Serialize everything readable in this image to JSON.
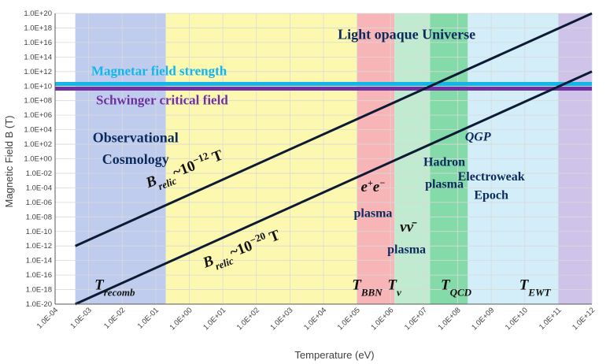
{
  "chart_data": {
    "type": "line",
    "xlabel": "Temperature (eV)",
    "ylabel": "Magnetic Field B (T)",
    "x_scale": "log",
    "y_scale": "log",
    "xlim": [
      0.0001,
      1000000000000
    ],
    "ylim": [
      1e-20,
      1e+20
    ],
    "x_ticks": [
      "1.0E-04",
      "1.0E-03",
      "1.0E-02",
      "1.0E-01",
      "1.0E+00",
      "1.0E+01",
      "1.0E+02",
      "1.0E+03",
      "1.0E+04",
      "1.0E+05",
      "1.0E+06",
      "1.0E+07",
      "1.0E+08",
      "1.0E+09",
      "1.0E+10",
      "1.0E+11",
      "1.0E+12"
    ],
    "y_ticks": [
      "1.0E-20",
      "1.0E-18",
      "1.0E-16",
      "1.0E-14",
      "1.0E-12",
      "1.0E-10",
      "1.0E-08",
      "1.0E-06",
      "1.0E-04",
      "1.0E-02",
      "1.0E+00",
      "1.0E+02",
      "1.0E+04",
      "1.0E+06",
      "1.0E+08",
      "1.0E+10",
      "1.0E+12",
      "1.0E+14",
      "1.0E+16",
      "1.0E+18",
      "1.0E+20"
    ],
    "grid": true,
    "regions": [
      {
        "x": [
          0.0004,
          0.2
        ],
        "color": "#b4c3ea"
      },
      {
        "x": [
          0.2,
          100000
        ],
        "color": "#fbf7a2"
      },
      {
        "x": [
          100000,
          1300000
        ],
        "color": "#f7a8aa"
      },
      {
        "x": [
          1300000,
          15000000
        ],
        "color": "#b5e8c8"
      },
      {
        "x": [
          15000000,
          200000000
        ],
        "color": "#6fd49a"
      },
      {
        "x": [
          200000000,
          100000000000
        ],
        "color": "#cbeaf8"
      },
      {
        "x": [
          100000000000,
          1000000000000
        ],
        "color": "#c8b8e6"
      }
    ],
    "series": [
      {
        "x": [
          0.0004,
          1000000000000
        ],
        "y": [
          1e-12,
          1e+20
        ],
        "color": "#0d1a33"
      },
      {
        "x": [
          0.0004,
          1000000000000
        ],
        "y": [
          1e-20,
          1000000000000.0
        ],
        "color": "#0d1a33"
      }
    ],
    "hlines": [
      {
        "y": 20000000000.0,
        "color": "#12b6ea",
        "label": "Magnetar field strength"
      },
      {
        "y": 4400000000.0,
        "color": "#7030a0",
        "label": "Schwinger critical field"
      }
    ],
    "annotations": [
      {
        "text": "Light opaque Universe",
        "x": 3000000,
        "y": 3e+16,
        "color": "#0d2a5c",
        "size": 18
      },
      {
        "text": "Observational",
        "x": 0.025,
        "y": 200.0,
        "color": "#0d2a5c",
        "size": 18
      },
      {
        "text": "Cosmology",
        "x": 0.025,
        "y": 0.2,
        "color": "#0d2a5c",
        "size": 18
      },
      {
        "text": "Hadron",
        "x": 40000000,
        "y": 0.1,
        "color": "#0d2a5c",
        "size": 16
      },
      {
        "text": "plasma",
        "x": 40000000,
        "y": 0.0001,
        "color": "#0d2a5c",
        "size": 16
      },
      {
        "text": "Electroweak",
        "x": 1000000000,
        "y": 0.001,
        "color": "#0d2a5c",
        "size": 16
      },
      {
        "text": "Epoch",
        "x": 1000000000,
        "y": 3e-06,
        "color": "#0d2a5c",
        "size": 16
      },
      {
        "text": "plasma",
        "x": 300000,
        "y": 1e-08,
        "color": "#0d2a5c",
        "size": 16
      },
      {
        "text": "plasma",
        "x": 3000000,
        "y": 1e-13,
        "color": "#0d2a5c",
        "size": 16
      }
    ],
    "math_labels": [
      {
        "base": "B",
        "sub": "relic",
        "rest": "~10",
        "sup": "−12",
        "unit": " T",
        "x": 0.8,
        "y": 0.01,
        "rotate": -21
      },
      {
        "base": "B",
        "sub": "relic",
        "rest": "~10",
        "sup": "−20",
        "unit": " T",
        "x": 40,
        "y": 1e-13,
        "rotate": -21
      },
      {
        "base": "T",
        "sub": "recomb",
        "x": 0.006,
        "y": 1e-18
      },
      {
        "base": "T",
        "sub": "BBN",
        "x": 200000,
        "y": 1e-18
      },
      {
        "base": "T",
        "sub": "ν",
        "x": 1300000,
        "y": 1e-18
      },
      {
        "base": "T",
        "sub": "QCD",
        "x": 90000000,
        "y": 1e-18
      },
      {
        "base": "T",
        "sub": "EWT",
        "x": 20000000000,
        "y": 1e-18
      },
      {
        "base": "e",
        "sup": "+",
        "rest": "e",
        "sup2": "−",
        "x": 300000,
        "y": 3e-05
      },
      {
        "base": "νν̄",
        "x": 3000000,
        "y": 1e-10
      },
      {
        "base": "QGP",
        "x": 400000000,
        "y": 300.0,
        "italic": true
      }
    ]
  }
}
